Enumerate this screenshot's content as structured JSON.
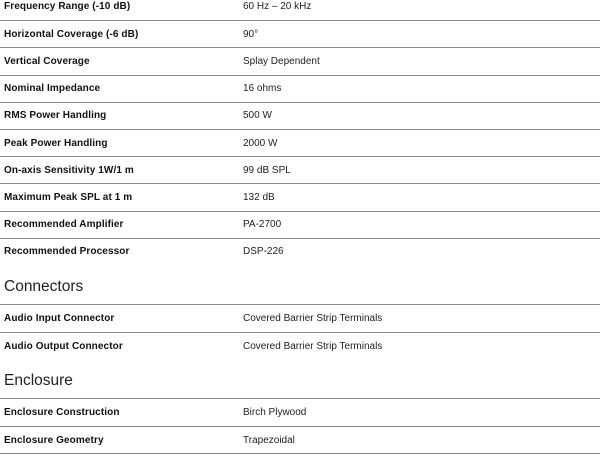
{
  "sections": [
    {
      "heading": "",
      "rows": [
        {
          "label": "Frequency Range (-10 dB)",
          "value": "60 Hz – 20 kHz"
        },
        {
          "label": "Horizontal Coverage (-6 dB)",
          "value": "90°"
        },
        {
          "label": "Vertical Coverage",
          "value": "Splay Dependent"
        },
        {
          "label": "Nominal Impedance",
          "value": "16 ohms"
        },
        {
          "label": "RMS Power Handling",
          "value": "500 W"
        },
        {
          "label": "Peak Power Handling",
          "value": "2000 W"
        },
        {
          "label": "On-axis Sensitivity 1W/1 m",
          "value": "99 dB SPL"
        },
        {
          "label": "Maximum Peak SPL at 1 m",
          "value": "132 dB"
        },
        {
          "label": "Recommended Amplifier",
          "value": "PA-2700"
        },
        {
          "label": "Recommended Processor",
          "value": "DSP-226"
        }
      ]
    },
    {
      "heading": "Connectors",
      "rows": [
        {
          "label": "Audio Input Connector",
          "value": "Covered Barrier Strip Terminals"
        },
        {
          "label": "Audio Output Connector",
          "value": "Covered Barrier Strip Terminals"
        }
      ]
    },
    {
      "heading": "Enclosure",
      "rows": [
        {
          "label": "Enclosure Construction",
          "value": "Birch Plywood"
        },
        {
          "label": "Enclosure Geometry",
          "value": "Trapezoidal"
        }
      ]
    }
  ]
}
